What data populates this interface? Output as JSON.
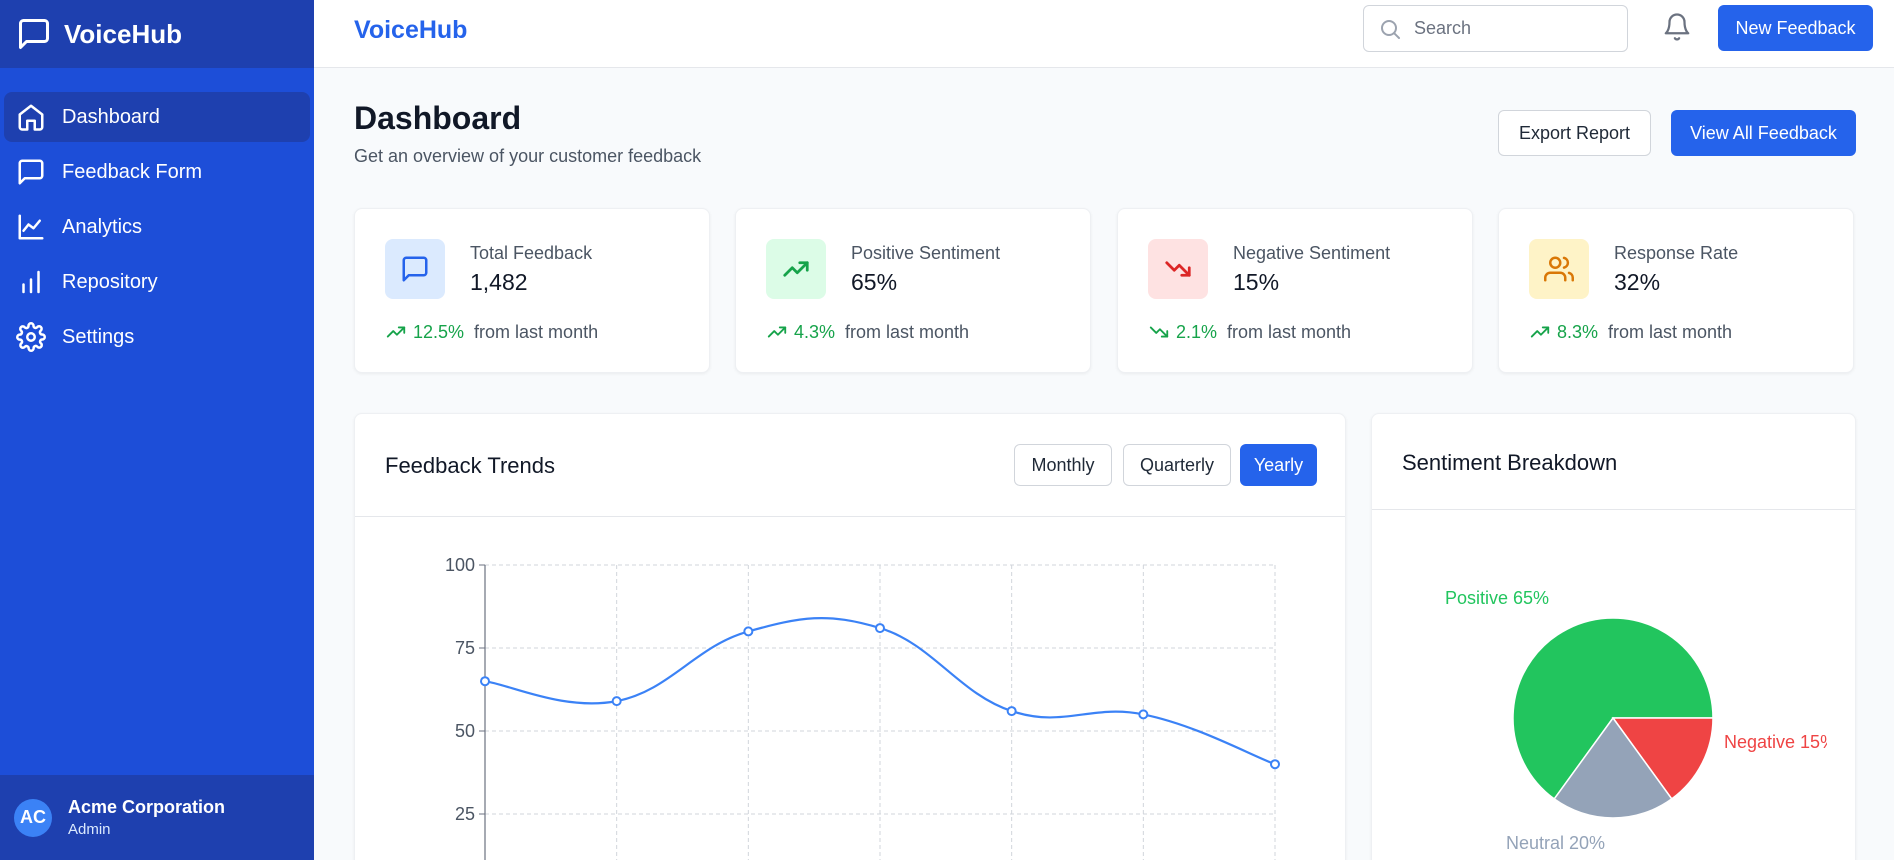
{
  "brand": {
    "name": "VoiceHub"
  },
  "sidebar": {
    "items": [
      {
        "label": "Dashboard",
        "icon": "home-icon"
      },
      {
        "label": "Feedback Form",
        "icon": "message-square-icon"
      },
      {
        "label": "Analytics",
        "icon": "line-chart-icon"
      },
      {
        "label": "Repository",
        "icon": "bar-chart-icon"
      },
      {
        "label": "Settings",
        "icon": "gear-icon"
      }
    ],
    "active": "Dashboard"
  },
  "user": {
    "initials": "AC",
    "name": "Acme Corporation",
    "role": "Admin"
  },
  "header": {
    "title": "VoiceHub",
    "search_placeholder": "Search",
    "new_feedback_label": "New Feedback"
  },
  "page": {
    "title": "Dashboard",
    "subtitle": "Get an overview of your customer feedback",
    "export_label": "Export Report",
    "view_all_label": "View All Feedback"
  },
  "stats": [
    {
      "label": "Total Feedback",
      "value": "1,482",
      "change": "12.5%",
      "change_text": "from last month",
      "direction": "up",
      "icon": "message-square-icon",
      "icon_color": "#2563eb",
      "icon_bg": "#dbeafe"
    },
    {
      "label": "Positive Sentiment",
      "value": "65%",
      "change": "4.3%",
      "change_text": "from last month",
      "direction": "up",
      "icon": "trending-up-icon",
      "icon_color": "#16a34a",
      "icon_bg": "#dcfce7"
    },
    {
      "label": "Negative Sentiment",
      "value": "15%",
      "change": "2.1%",
      "change_text": "from last month",
      "direction": "down",
      "icon": "trending-down-icon",
      "icon_color": "#dc2626",
      "icon_bg": "#fee2e2"
    },
    {
      "label": "Response Rate",
      "value": "32%",
      "change": "8.3%",
      "change_text": "from last month",
      "direction": "up",
      "icon": "users-icon",
      "icon_color": "#d97706",
      "icon_bg": "#fef3c7"
    }
  ],
  "trends": {
    "title": "Feedback Trends",
    "ranges": [
      "Monthly",
      "Quarterly",
      "Yearly"
    ],
    "active_range": "Yearly"
  },
  "sentiment": {
    "title": "Sentiment Breakdown"
  },
  "colors": {
    "accent": "#2563eb",
    "sidebar": "#1d4ed8",
    "sidebar_dark": "#1e40af",
    "positive": "#22c55e",
    "negative": "#ef4444",
    "neutral": "#94a3b8"
  },
  "chart_data": [
    {
      "type": "line",
      "x": [
        1,
        2,
        3,
        4,
        5,
        6,
        7
      ],
      "values": [
        65,
        59,
        80,
        81,
        56,
        55,
        40
      ],
      "yticks": [
        "100",
        "75",
        "50",
        "25"
      ],
      "ylim": [
        0,
        100
      ],
      "grid": true
    },
    {
      "type": "pie",
      "slices": [
        {
          "label": "Positive 65%",
          "value": 65,
          "color": "#22c55e"
        },
        {
          "label": "Negative 15%",
          "value": 15,
          "color": "#ef4444"
        },
        {
          "label": "Neutral 20%",
          "value": 20,
          "color": "#94a3b8"
        }
      ]
    }
  ]
}
